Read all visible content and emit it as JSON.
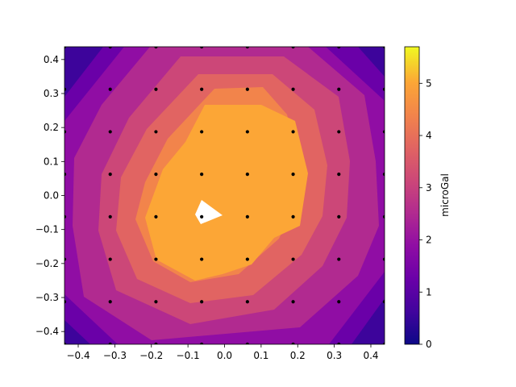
{
  "chart_data": {
    "type": "contourf",
    "xlim": [
      -0.4375,
      0.4375
    ],
    "ylim": [
      -0.4375,
      0.4375
    ],
    "x_ticks": [
      -0.4,
      -0.3,
      -0.2,
      -0.1,
      0.0,
      0.1,
      0.2,
      0.3,
      0.4
    ],
    "x_tick_labels": [
      "−0.4",
      "−0.3",
      "−0.2",
      "−0.1",
      "0.0",
      "0.1",
      "0.2",
      "0.3",
      "0.4"
    ],
    "y_ticks": [
      -0.4,
      -0.3,
      -0.2,
      -0.1,
      0.0,
      0.1,
      0.2,
      0.3,
      0.4
    ],
    "y_tick_labels": [
      "−0.4",
      "−0.3",
      "−0.2",
      "−0.1",
      "0.0",
      "0.1",
      "0.2",
      "0.3",
      "0.4"
    ],
    "sample_points": [
      -0.4375,
      -0.3125,
      -0.1875,
      -0.0625,
      0.0625,
      0.1875,
      0.3125,
      0.4375
    ],
    "contour_levels": [
      0,
      0.6,
      1.2,
      1.8,
      2.4,
      3.0,
      3.6,
      4.2,
      4.8,
      5.7
    ],
    "colorbar": {
      "label": "microGal",
      "range": [
        0,
        5.7
      ],
      "ticks": [
        0,
        1,
        2,
        3,
        4,
        5
      ],
      "tick_labels": [
        "0",
        "1",
        "2",
        "3",
        "4",
        "5"
      ],
      "colormap": "plasma"
    },
    "level_colors": [
      "#3d049b",
      "#6a00a8",
      "#900da4",
      "#b12a90",
      "#cc4778",
      "#e16462",
      "#f2844b",
      "#fca636",
      "#fcce25"
    ],
    "peak": {
      "x": -0.06,
      "y": -0.06,
      "value": 5.7
    }
  }
}
